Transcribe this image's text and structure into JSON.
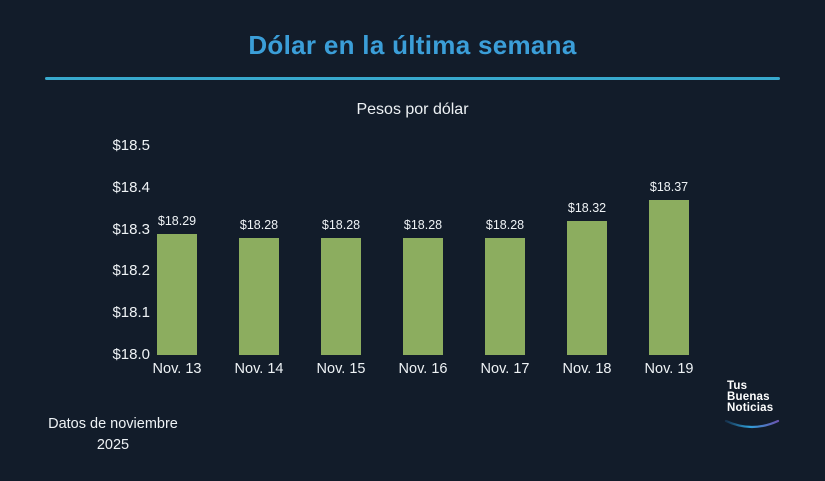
{
  "chart_data": {
    "type": "bar",
    "title": "Dólar en la última semana",
    "subtitle": "Pesos por dólar",
    "categories": [
      "Nov. 13",
      "Nov. 14",
      "Nov. 15",
      "Nov. 16",
      "Nov. 17",
      "Nov. 18",
      "Nov. 19"
    ],
    "values": [
      18.29,
      18.28,
      18.28,
      18.28,
      18.28,
      18.32,
      18.37
    ],
    "value_labels": [
      "$18.29",
      "$18.28",
      "$18.28",
      "$18.28",
      "$18.28",
      "$18.32",
      "$18.37"
    ],
    "xlabel": "",
    "ylabel": "",
    "ylim": [
      18.0,
      18.5
    ],
    "ytick_step": 0.1,
    "ytick_labels": [
      "$18.0",
      "$18.1",
      "$18.2",
      "$18.3",
      "$18.4",
      "$18.5"
    ],
    "grid": false,
    "legend": false,
    "bar_color": "#8cad5f"
  },
  "footer": {
    "source_line1": "Datos de noviembre",
    "source_line2": "2025"
  },
  "logo": {
    "line1": "Tus",
    "line2": "Buenas",
    "line3": "Noticias",
    "swoosh_colors": [
      "#16324e",
      "#2f9fd9",
      "#6a54b0"
    ]
  },
  "colors": {
    "background": "#121c2a",
    "title": "#3b9ed8",
    "divider": "#38a9cd",
    "bar": "#8cad5f",
    "text": "#eef2f5"
  }
}
